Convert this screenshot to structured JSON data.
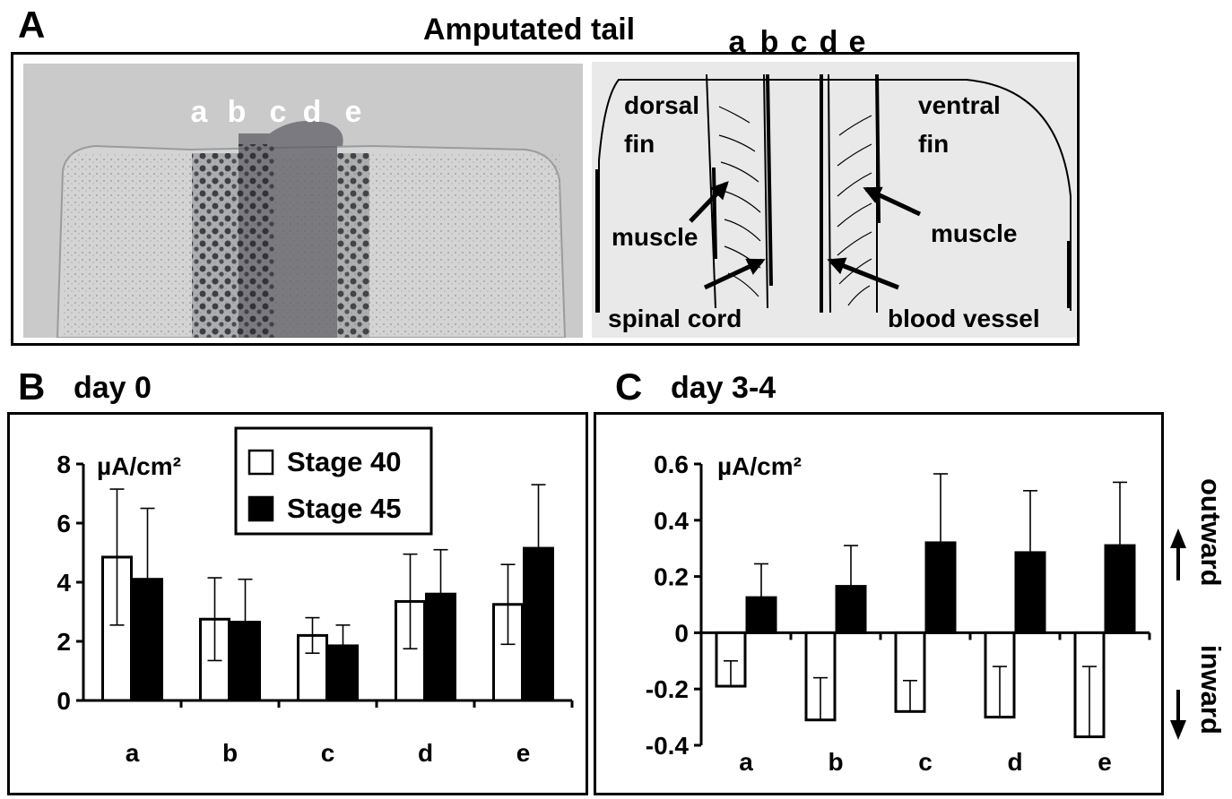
{
  "panel_a": {
    "letter": "A",
    "title": "Amputated tail",
    "positions": [
      "a",
      "b",
      "c",
      "d",
      "e"
    ],
    "labels": {
      "dorsal_fin": [
        "dorsal",
        "fin"
      ],
      "ventral_fin": [
        "ventral",
        "fin"
      ],
      "muscle_left": "muscle",
      "muscle_right": "muscle",
      "spinal_cord": "spinal cord",
      "blood_vessel": "blood vessel"
    }
  },
  "panel_b": {
    "letter": "B",
    "title": "day 0"
  },
  "panel_c": {
    "letter": "C",
    "title": "day 3-4",
    "direction_up": "outward",
    "direction_down": "inward"
  },
  "chart_data": [
    {
      "type": "bar",
      "panel": "B",
      "title": "day 0",
      "ylabel": "µA/cm²",
      "categories": [
        "a",
        "b",
        "c",
        "d",
        "e"
      ],
      "ylim": [
        0,
        8
      ],
      "yticks": [
        0,
        2,
        4,
        6,
        8
      ],
      "legend_position": "top-center",
      "series": [
        {
          "name": "Stage 40",
          "fill": "#ffffff",
          "values": [
            4.85,
            2.75,
            2.2,
            3.35,
            3.25
          ],
          "errors": [
            2.3,
            1.4,
            0.6,
            1.6,
            1.35
          ]
        },
        {
          "name": "Stage 45",
          "fill": "#000000",
          "values": [
            4.1,
            2.65,
            1.85,
            3.6,
            5.15
          ],
          "errors": [
            2.4,
            1.45,
            0.7,
            1.5,
            2.15
          ]
        }
      ]
    },
    {
      "type": "bar",
      "panel": "C",
      "title": "day 3-4",
      "ylabel": "µA/cm²",
      "categories": [
        "a",
        "b",
        "c",
        "d",
        "e"
      ],
      "ylim": [
        -0.4,
        0.6
      ],
      "yticks": [
        -0.4,
        -0.2,
        0,
        0.2,
        0.4,
        0.6
      ],
      "series": [
        {
          "name": "Stage 40",
          "fill": "#ffffff",
          "values": [
            -0.19,
            -0.31,
            -0.28,
            -0.3,
            -0.37
          ],
          "errors": [
            0.09,
            0.15,
            0.11,
            0.18,
            0.25
          ]
        },
        {
          "name": "Stage 45",
          "fill": "#000000",
          "values": [
            0.125,
            0.165,
            0.32,
            0.285,
            0.31
          ],
          "errors": [
            0.12,
            0.145,
            0.245,
            0.22,
            0.225
          ]
        }
      ]
    }
  ]
}
